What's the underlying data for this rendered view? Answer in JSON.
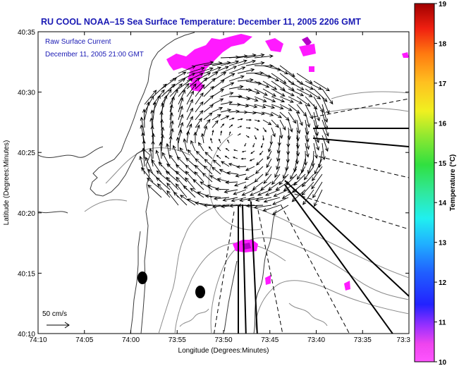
{
  "title": "RU COOL   NOAA–15  Sea Surface Temperature:  December 11, 2005 2206 GMT",
  "annotation": {
    "line1": "Raw Surface Current",
    "line2": "December 11, 2005 21:00 GMT"
  },
  "x_axis": {
    "label": "Longitude (Degrees:Minutes)",
    "ticks": [
      "74:10",
      "74:05",
      "74:00",
      "73:55",
      "73:50",
      "73:45",
      "73:40",
      "73:35",
      "73:3"
    ]
  },
  "y_axis": {
    "label": "Latitude (Degrees:Minutes)",
    "ticks": [
      "40:35",
      "40:30",
      "40:25",
      "40:20",
      "40:15",
      "40:10"
    ]
  },
  "scale_label": "50 cm/s",
  "colorbar": {
    "label": "Temperature (°C)",
    "ticks": [
      "19",
      "18",
      "17",
      "16",
      "15",
      "14",
      "13",
      "12",
      "11",
      "10"
    ]
  },
  "colors": {
    "title_text": "#1a1ab4",
    "annotation_text": "#1a1ab4",
    "sst_patch": "#ff1aff",
    "sst_patch_dark": "#b400c8",
    "station": "#000000"
  }
}
